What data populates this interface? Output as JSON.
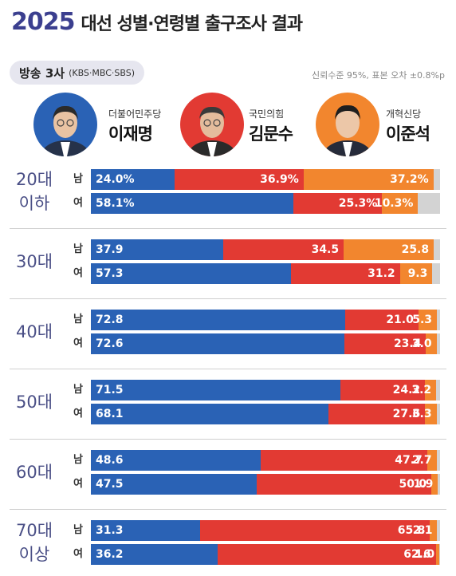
{
  "header": {
    "year": "2025",
    "title": "대선 성별·연령별 출구조사 결과",
    "source_main": "방송 3사",
    "source_sub": "(KBS·MBC·SBS)",
    "note": "신뢰수준 95%, 표본 오차 ±0.8%p"
  },
  "candidates": [
    {
      "party": "더불어민주당",
      "name": "이재명",
      "color": "#2a62b5"
    },
    {
      "party": "국민의힘",
      "name": "김문수",
      "color": "#e23a33"
    },
    {
      "party": "개혁신당",
      "name": "이준석",
      "color": "#f2862e"
    }
  ],
  "chart_data": {
    "type": "bar",
    "stacked": true,
    "orientation": "horizontal",
    "unit": "%",
    "series_names": [
      "이재명",
      "김문수",
      "이준석"
    ],
    "series_colors": [
      "#2a62b5",
      "#e23a33",
      "#f2862e"
    ],
    "other_color": "#d3d3d3",
    "groups": [
      {
        "age": [
          "20대",
          "이하"
        ],
        "rows": [
          {
            "gender": "남",
            "values": [
              24.0,
              36.9,
              37.2
            ],
            "labels": [
              "24.0%",
              "36.9%",
              "37.2%"
            ]
          },
          {
            "gender": "여",
            "values": [
              58.1,
              25.3,
              10.3
            ],
            "labels": [
              "58.1%",
              "25.3%",
              "10.3%"
            ]
          }
        ]
      },
      {
        "age": [
          "30대"
        ],
        "rows": [
          {
            "gender": "남",
            "values": [
              37.9,
              34.5,
              25.8
            ],
            "labels": [
              "37.9",
              "34.5",
              "25.8"
            ]
          },
          {
            "gender": "여",
            "values": [
              57.3,
              31.2,
              9.3
            ],
            "labels": [
              "57.3",
              "31.2",
              "9.3"
            ]
          }
        ]
      },
      {
        "age": [
          "40대"
        ],
        "rows": [
          {
            "gender": "남",
            "values": [
              72.8,
              21.0,
              5.3
            ],
            "labels": [
              "72.8",
              "21.0",
              "5.3"
            ]
          },
          {
            "gender": "여",
            "values": [
              72.6,
              23.4,
              3.0
            ],
            "labels": [
              "72.6",
              "23.4",
              "3.0"
            ]
          }
        ]
      },
      {
        "age": [
          "50대"
        ],
        "rows": [
          {
            "gender": "남",
            "values": [
              71.5,
              24.2,
              3.2
            ],
            "labels": [
              "71.5",
              "24.2",
              "3.2"
            ]
          },
          {
            "gender": "여",
            "values": [
              68.1,
              27.6,
              3.3
            ],
            "labels": [
              "68.1",
              "27.6",
              "3.3"
            ]
          }
        ]
      },
      {
        "age": [
          "60대"
        ],
        "rows": [
          {
            "gender": "남",
            "values": [
              48.6,
              47.7,
              2.7
            ],
            "labels": [
              "48.6",
              "47.7",
              "2.7"
            ]
          },
          {
            "gender": "여",
            "values": [
              47.5,
              50.0,
              1.9
            ],
            "labels": [
              "47.5",
              "50.0",
              "1.9"
            ]
          }
        ]
      },
      {
        "age": [
          "70대",
          "이상"
        ],
        "rows": [
          {
            "gender": "남",
            "values": [
              31.3,
              65.8,
              2.1
            ],
            "labels": [
              "31.3",
              "65.8",
              "2.1"
            ]
          },
          {
            "gender": "여",
            "values": [
              36.2,
              62.6,
              1.0
            ],
            "labels": [
              "36.2",
              "62.6",
              "1.0"
            ]
          }
        ]
      }
    ]
  }
}
